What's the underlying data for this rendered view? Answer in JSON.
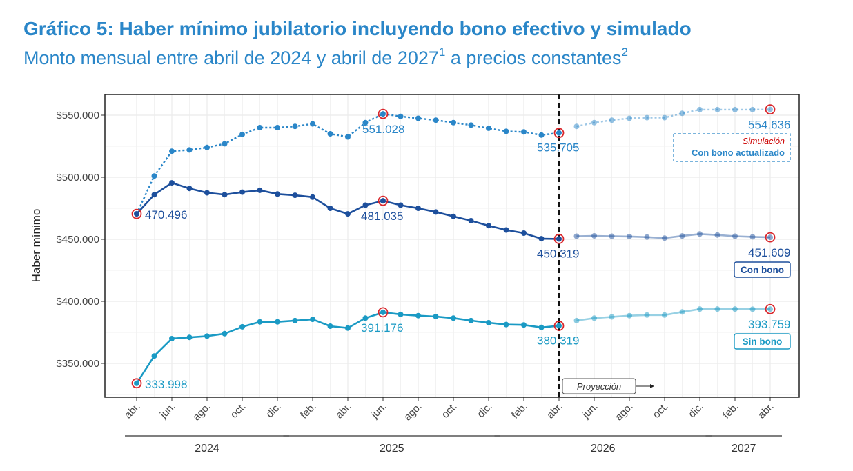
{
  "title": "Gráfico 5: Haber mínimo jubilatorio incluyendo bono efectivo y simulado",
  "subtitle": {
    "part1": "Monto mensual entre abril de 2024 y abril de 2027",
    "sup1": "1",
    "part2": " a precios constantes",
    "sup2": "2"
  },
  "colors": {
    "con_bono_actualizado": "#2a86c8",
    "con_bono": "#1d4f9c",
    "sin_bono": "#1a9ac4",
    "simulacion_text": "#cc0000",
    "highlight_ring": "#d9262b",
    "grid": "#ebebeb"
  },
  "chart_data": {
    "type": "line",
    "ylabel": "Haber mínimo",
    "ylim": [
      320000,
      560000
    ],
    "yticks": [
      350000,
      400000,
      450000,
      500000,
      550000
    ],
    "ytick_labels": [
      "$350.000",
      "$400.000",
      "$450.000",
      "$500.000",
      "$550.000"
    ],
    "x_tick_labels": [
      "abr.",
      "jun.",
      "ago.",
      "oct.",
      "dic.",
      "feb.",
      "abr.",
      "jun.",
      "ago.",
      "oct.",
      "dic.",
      "feb.",
      "abr.",
      "jun.",
      "ago.",
      "oct.",
      "dic.",
      "feb.",
      "abr."
    ],
    "x_tick_months": [
      "2024-04",
      "2024-06",
      "2024-08",
      "2024-10",
      "2024-12",
      "2025-02",
      "2025-04",
      "2025-06",
      "2025-08",
      "2025-10",
      "2025-12",
      "2026-02",
      "2026-04",
      "2026-06",
      "2026-08",
      "2026-10",
      "2026-12",
      "2027-02",
      "2027-04"
    ],
    "year_groups": [
      {
        "label": "2024",
        "from": "2024-04",
        "to": "2024-12"
      },
      {
        "label": "2025",
        "from": "2025-01",
        "to": "2025-12"
      },
      {
        "label": "2026",
        "from": "2026-01",
        "to": "2026-12"
      },
      {
        "label": "2027",
        "from": "2027-01",
        "to": "2027-04"
      }
    ],
    "divider_month": "2026-04",
    "projection_label": "Proyección",
    "months": [
      "2024-04",
      "2024-05",
      "2024-06",
      "2024-07",
      "2024-08",
      "2024-09",
      "2024-10",
      "2024-11",
      "2024-12",
      "2025-01",
      "2025-02",
      "2025-03",
      "2025-04",
      "2025-05",
      "2025-06",
      "2025-07",
      "2025-08",
      "2025-09",
      "2025-10",
      "2025-11",
      "2025-12",
      "2026-01",
      "2026-02",
      "2026-03",
      "2026-04",
      "2026-05",
      "2026-06",
      "2026-07",
      "2026-08",
      "2026-09",
      "2026-10",
      "2026-11",
      "2026-12",
      "2027-01",
      "2027-02",
      "2027-03",
      "2027-04"
    ],
    "series": [
      {
        "key": "con_bono_actualizado",
        "values": [
          470496,
          501000,
          521000,
          522000,
          524000,
          527000,
          534500,
          540000,
          540000,
          541000,
          543000,
          535000,
          532500,
          544000,
          551028,
          549000,
          547500,
          546000,
          544000,
          542000,
          539500,
          537000,
          536500,
          534000,
          535705,
          541000,
          544000,
          546000,
          547500,
          548000,
          548000,
          551500,
          554500,
          554500,
          554500,
          554500,
          554636
        ],
        "labels": [
          {
            "month": "2025-06",
            "text": "551.028"
          },
          {
            "month": "2026-04",
            "text": "535.705"
          },
          {
            "month": "2027-04",
            "text": "554.636"
          }
        ],
        "highlighted": [
          "2025-06",
          "2026-04",
          "2027-04"
        ]
      },
      {
        "key": "con_bono",
        "values": [
          470496,
          486000,
          495500,
          491000,
          487500,
          486000,
          488000,
          489500,
          486500,
          485500,
          484000,
          475000,
          470500,
          477500,
          481035,
          477500,
          475000,
          472000,
          468500,
          465000,
          461000,
          457500,
          455000,
          450500,
          450319,
          452500,
          452800,
          452500,
          452300,
          451800,
          451000,
          452700,
          454300,
          453500,
          452500,
          452000,
          451609
        ],
        "labels": [
          {
            "month": "2024-04",
            "text": "470.496"
          },
          {
            "month": "2025-06",
            "text": "481.035"
          },
          {
            "month": "2026-04",
            "text": "450.319"
          },
          {
            "month": "2027-04",
            "text": "451.609"
          }
        ],
        "highlighted": [
          "2024-04",
          "2025-06",
          "2026-04",
          "2027-04"
        ]
      },
      {
        "key": "sin_bono",
        "values": [
          333998,
          356000,
          370000,
          371000,
          372000,
          374000,
          379500,
          383500,
          383500,
          384500,
          385500,
          380000,
          378500,
          386500,
          391176,
          389500,
          388500,
          387800,
          386500,
          384500,
          382800,
          381300,
          381000,
          379000,
          380319,
          384500,
          386500,
          387500,
          388500,
          389000,
          389000,
          391500,
          393800,
          393800,
          393800,
          393700,
          393759
        ],
        "labels": [
          {
            "month": "2024-04",
            "text": "333.998"
          },
          {
            "month": "2025-06",
            "text": "391.176"
          },
          {
            "month": "2026-04",
            "text": "380.319"
          },
          {
            "month": "2027-04",
            "text": "393.759"
          }
        ],
        "highlighted": [
          "2024-04",
          "2025-06",
          "2026-04",
          "2027-04"
        ]
      }
    ],
    "legend_boxes": [
      {
        "key": "con_bono_actualizado",
        "line1": "Simulación",
        "line2": "Con bono actualizado"
      },
      {
        "key": "con_bono",
        "line1": "Con bono"
      },
      {
        "key": "sin_bono",
        "line1": "Sin bono"
      }
    ]
  }
}
